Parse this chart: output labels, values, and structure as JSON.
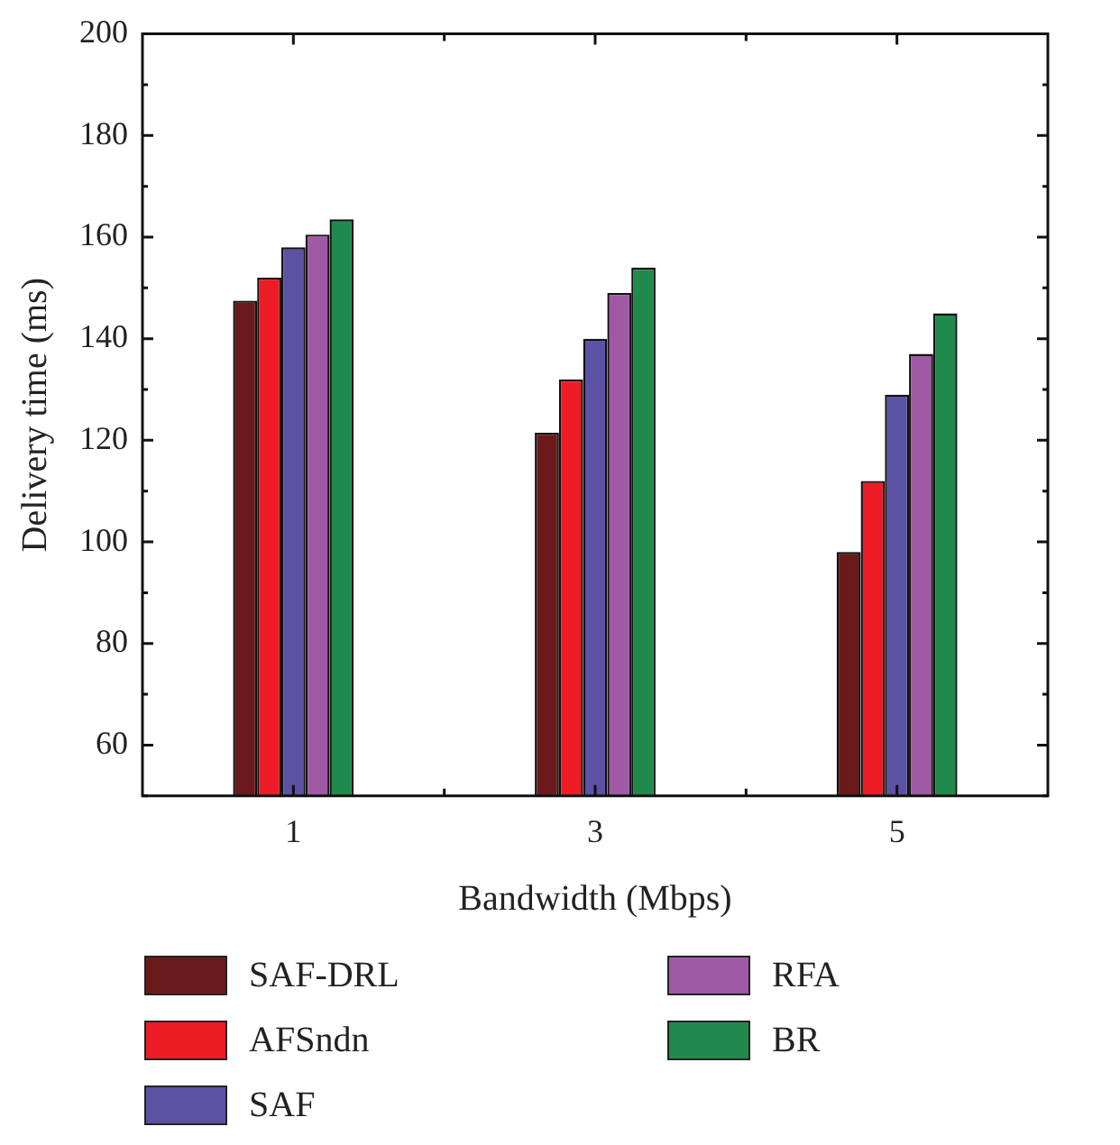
{
  "chart_data": {
    "type": "bar",
    "xlabel": "Bandwidth (Mbps)",
    "ylabel": "Delivery time (ms)",
    "categories": [
      "1",
      "3",
      "5"
    ],
    "series": [
      {
        "name": "SAF-DRL",
        "color": "#6b1a1c",
        "values": [
          147.5,
          121.5,
          98
        ]
      },
      {
        "name": "AFSndn",
        "color": "#ee1c25",
        "values": [
          152,
          132,
          112
        ]
      },
      {
        "name": "SAF",
        "color": "#5b52a3",
        "values": [
          158,
          140,
          129
        ]
      },
      {
        "name": "RFA",
        "color": "#a05aa5",
        "values": [
          160.5,
          149,
          137
        ]
      },
      {
        "name": "BR",
        "color": "#1f8a4c",
        "values": [
          163.5,
          154,
          145
        ]
      }
    ],
    "ylim": [
      50,
      200
    ],
    "yticks": [
      60,
      80,
      100,
      120,
      140,
      160,
      180,
      200
    ],
    "grid": false,
    "legend": "bottom"
  }
}
